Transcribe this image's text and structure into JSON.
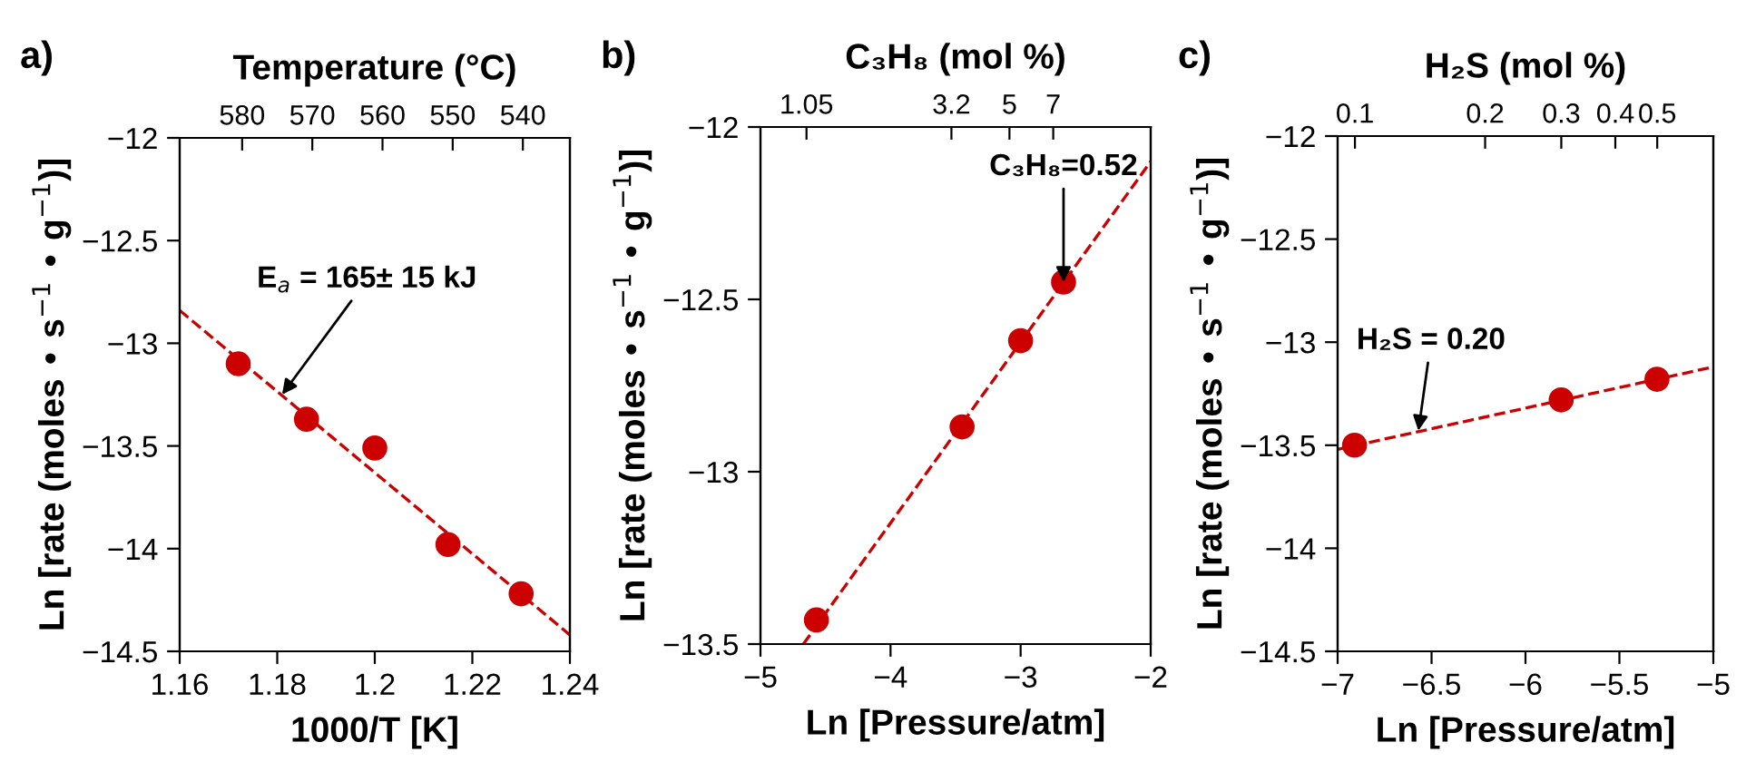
{
  "chart_data": [
    {
      "type": "scatter",
      "title": "a)",
      "xlabel": "1000/T [K]",
      "ylabel": "Ln [rate (moles • s$^{−1}$ • g$^{−1}$)]",
      "x2label": "Temperature (°C)",
      "xlim": [
        1.16,
        1.24
      ],
      "xticks": [
        1.16,
        1.18,
        1.2,
        1.22,
        1.24
      ],
      "ylim": [
        -14.5,
        -12
      ],
      "yticks": [
        -14.5,
        -14,
        -13.5,
        -13,
        -12.5,
        -12
      ],
      "x2lim": [
        588.9,
        533.3
      ],
      "x2ticks": [
        580,
        570,
        560,
        550,
        540
      ],
      "series": [
        {
          "color": "#cc0000",
          "marker": "circle",
          "x": [
            1.172,
            1.186,
            1.2,
            1.215,
            1.23
          ],
          "values": [
            -13.1,
            -13.37,
            -13.51,
            -13.98,
            -14.22
          ]
        },
        {
          "type": "line",
          "color": "#cc0000",
          "line_style": "dashed",
          "marker": "none",
          "x": [
            1.16,
            1.24
          ],
          "values": [
            -12.84,
            -14.42
          ]
        }
      ],
      "annotations": [
        {
          "text": "E$_{a}$ = 165± 15 kJ",
          "x": 1.181,
          "y": -13.25
        }
      ],
      "grid": false,
      "legend": false
    },
    {
      "type": "scatter",
      "title": "b)",
      "xlabel": "Ln [Pressure/atm]",
      "ylabel": "Ln [rate (moles • s$^{−1}$ • g$^{−1}$)]",
      "x2label": "C₃H₈ (mol %)",
      "xlim": [
        -5,
        -2
      ],
      "xticks": [
        -5,
        -4,
        -3,
        -2
      ],
      "ylim": [
        -13.5,
        -12
      ],
      "yticks": [
        -13.5,
        -13,
        -12.5,
        -12
      ],
      "log": "x2",
      "x2lim": [
        0.737,
        14.81
      ],
      "x2ticks": [
        1.05,
        3.2,
        5,
        7
      ],
      "series": [
        {
          "color": "#cc0000",
          "marker": "circle",
          "x": [
            -4.57,
            -3.45,
            -3.0,
            -2.67
          ],
          "values": [
            -13.43,
            -12.87,
            -12.62,
            -12.45
          ]
        },
        {
          "type": "line",
          "color": "#cc0000",
          "line_style": "dashed",
          "marker": "none",
          "x": [
            -4.67,
            -2
          ],
          "values": [
            -13.5,
            -12.1
          ]
        }
      ],
      "annotations": [
        {
          "text": "C₃H₈=0.52",
          "x": -2.67,
          "y": -12.45
        }
      ],
      "grid": false,
      "legend": false
    },
    {
      "type": "scatter",
      "title": "c)",
      "xlabel": "Ln [Pressure/atm]",
      "ylabel": "Ln [rate (moles • s$^{−1}$ • g$^{−1}$)]",
      "x2label": "H₂S (mol %)",
      "xlim": [
        -7,
        -5
      ],
      "xticks": [
        -7,
        -6.5,
        -6,
        -5.5,
        -5
      ],
      "ylim": [
        -14.5,
        -12
      ],
      "yticks": [
        -14.5,
        -14,
        -13.5,
        -13,
        -12.5,
        -12
      ],
      "log": "x2",
      "x2lim": [
        0.0912,
        0.674
      ],
      "x2ticks": [
        0.1,
        0.2,
        0.3,
        0.4,
        0.5
      ],
      "series": [
        {
          "color": "#cc0000",
          "marker": "circle",
          "x": [
            -6.91,
            -5.81,
            -5.3
          ],
          "values": [
            -13.5,
            -13.28,
            -13.18
          ]
        },
        {
          "type": "line",
          "color": "#cc0000",
          "line_style": "dashed",
          "marker": "none",
          "x": [
            -7,
            -5
          ],
          "values": [
            -13.52,
            -13.12
          ]
        }
      ],
      "annotations": [
        {
          "text": "H₂S = 0.20",
          "x": -6.57,
          "y": -13.43
        }
      ],
      "grid": false,
      "legend": false
    }
  ]
}
